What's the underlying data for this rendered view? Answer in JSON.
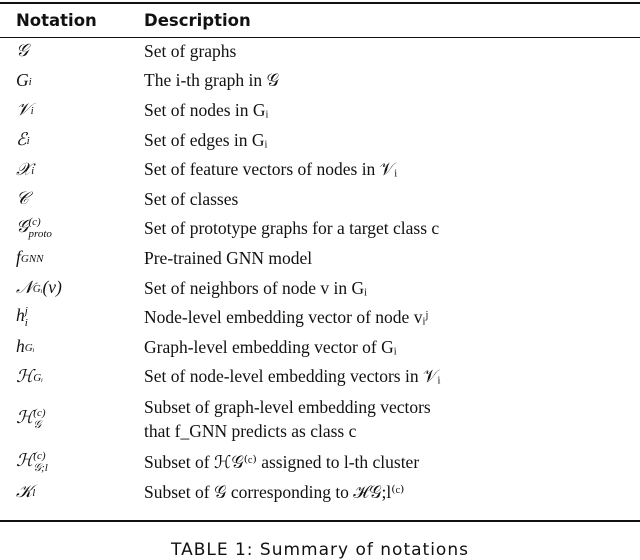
{
  "table": {
    "headers": [
      "Notation",
      "Description"
    ],
    "rows": [
      {
        "base": "𝒢",
        "sub": "",
        "sup": "",
        "arg": "",
        "desc": "Set of graphs"
      },
      {
        "base": "G",
        "sub": "i",
        "sup": "",
        "arg": "",
        "desc": "The i-th graph in 𝒢"
      },
      {
        "base": "𝒱",
        "sub": "i",
        "sup": "",
        "arg": "",
        "desc": "Set of nodes in Gᵢ"
      },
      {
        "base": "ℰ",
        "sub": "i",
        "sup": "",
        "arg": "",
        "desc": "Set of edges in Gᵢ"
      },
      {
        "base": "𝒳",
        "sub": "i",
        "sup": "",
        "arg": "",
        "desc": "Set of feature vectors of nodes in 𝒱ᵢ"
      },
      {
        "base": "𝒞",
        "sub": "",
        "sup": "",
        "arg": "",
        "desc": "Set of classes"
      },
      {
        "base": "𝒢",
        "sub": "proto",
        "sup": "(c)",
        "arg": "",
        "desc": "Set of prototype graphs for a target class c"
      },
      {
        "base": "f",
        "sub": "GNN",
        "sup": "",
        "arg": "",
        "desc": "Pre-trained GNN model"
      },
      {
        "base": "𝒩",
        "sub": "Gᵢ",
        "sup": "",
        "arg": "(v)",
        "desc": "Set of neighbors of node v in Gᵢ"
      },
      {
        "base": "h",
        "sub": "i",
        "sup": "j",
        "arg": "",
        "desc": "Node-level embedding vector of node vᵢʲ"
      },
      {
        "base": "h",
        "sub": "Gᵢ",
        "sup": "",
        "arg": "",
        "desc": "Graph-level embedding vector of Gᵢ"
      },
      {
        "base": "ℋ",
        "sub": "Gᵢ",
        "sup": "",
        "arg": "",
        "desc": "Set of node-level embedding vectors in 𝒱ᵢ"
      },
      {
        "base": "ℋ",
        "sub": "𝒢",
        "sup": "(c)",
        "arg": "",
        "desc": "Subset of graph-level embedding vectors",
        "desc2": "that f_GNN predicts as class c"
      },
      {
        "base": "ℋ",
        "sub": "𝒢;l",
        "sup": "(c)",
        "arg": "",
        "desc": "Subset of ℋ𝒢⁽ᶜ⁾ assigned to l-th cluster"
      },
      {
        "base": "𝒦",
        "sub": "l",
        "sup": "",
        "arg": "",
        "desc": "Subset of 𝒢 corresponding to ℋ𝒢;l⁽ᶜ⁾"
      }
    ]
  },
  "caption": "TABLE 1: Summary of notations"
}
